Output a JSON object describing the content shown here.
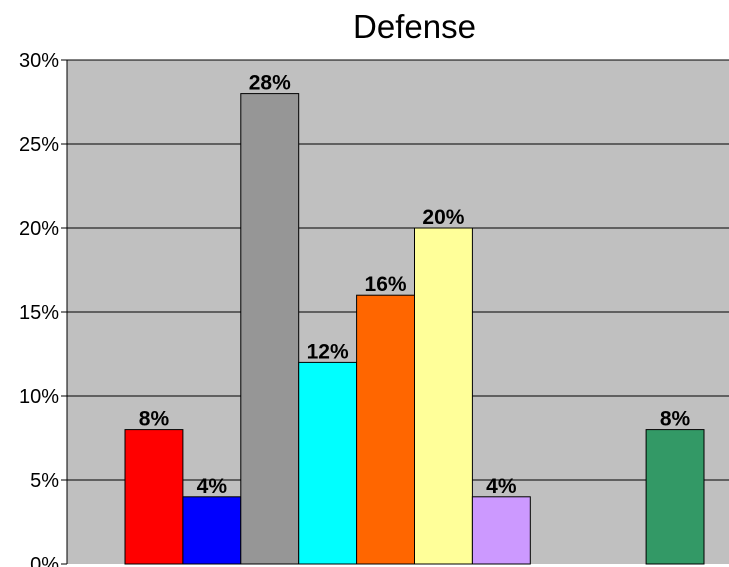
{
  "chart_data": {
    "type": "bar",
    "title": "Defense",
    "xlabel": "",
    "ylabel": "",
    "ylim": [
      0,
      30
    ],
    "y_ticks": [
      "0%",
      "5%",
      "10%",
      "15%",
      "20%",
      "25%",
      "30%"
    ],
    "y_tick_values": [
      0,
      5,
      10,
      15,
      20,
      25,
      30
    ],
    "grid": true,
    "legend": "none",
    "plot_background": "#c0c0c0",
    "slots": 10,
    "bars": [
      {
        "slot": 0,
        "value": 8,
        "label": "8%",
        "color": "#ff0000"
      },
      {
        "slot": 1,
        "value": 4,
        "label": "4%",
        "color": "#0000ff"
      },
      {
        "slot": 2,
        "value": 28,
        "label": "28%",
        "color": "#969696"
      },
      {
        "slot": 3,
        "value": 12,
        "label": "12%",
        "color": "#00ffff"
      },
      {
        "slot": 4,
        "value": 16,
        "label": "16%",
        "color": "#ff6600"
      },
      {
        "slot": 5,
        "value": 20,
        "label": "20%",
        "color": "#ffff99"
      },
      {
        "slot": 6,
        "value": 4,
        "label": "4%",
        "color": "#cc99ff"
      },
      {
        "slot": 9,
        "value": 8,
        "label": "8%",
        "color": "#339966"
      }
    ]
  }
}
